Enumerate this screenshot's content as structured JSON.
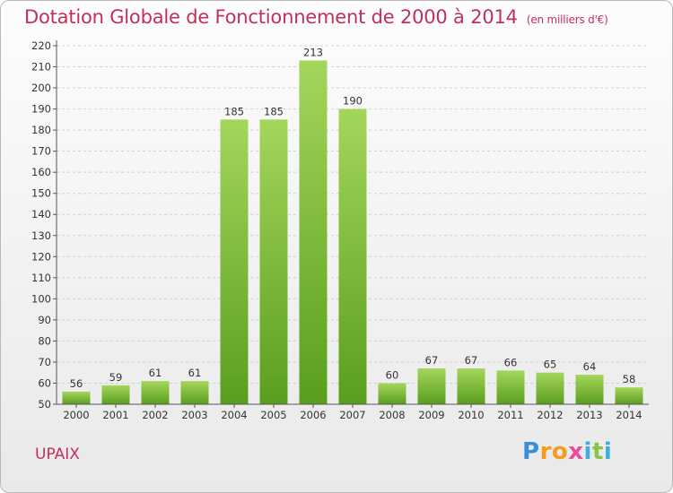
{
  "header": {
    "title": "Dotation Globale de Fonctionnement de 2000 à 2014",
    "unit": "(en milliers d'€)"
  },
  "commune": "UPAIX",
  "logo": {
    "letters": [
      "P",
      "r",
      "o",
      "x",
      "i",
      "t",
      "i"
    ],
    "colors": [
      "#3b8fd6",
      "#f39c1f",
      "#f39c1f",
      "#e84c9a",
      "#3bb0e0",
      "#8bc34a",
      "#3bb0e0"
    ]
  },
  "colors": {
    "title": "#c2305a",
    "bar_top": "#a4d65c",
    "bar_bottom": "#5a9e1e",
    "grid": "#d0d0d0"
  },
  "chart_data": {
    "type": "bar",
    "title": "Dotation Globale de Fonctionnement de 2000 à 2014",
    "xlabel": "",
    "ylabel": "(en milliers d'€)",
    "categories": [
      "2000",
      "2001",
      "2002",
      "2003",
      "2004",
      "2005",
      "2006",
      "2007",
      "2008",
      "2009",
      "2010",
      "2011",
      "2012",
      "2013",
      "2014"
    ],
    "values": [
      56,
      59,
      61,
      61,
      185,
      185,
      213,
      190,
      60,
      67,
      67,
      66,
      65,
      64,
      58
    ],
    "ylim": [
      50,
      220
    ],
    "ytick_step": 10,
    "grid": true
  }
}
